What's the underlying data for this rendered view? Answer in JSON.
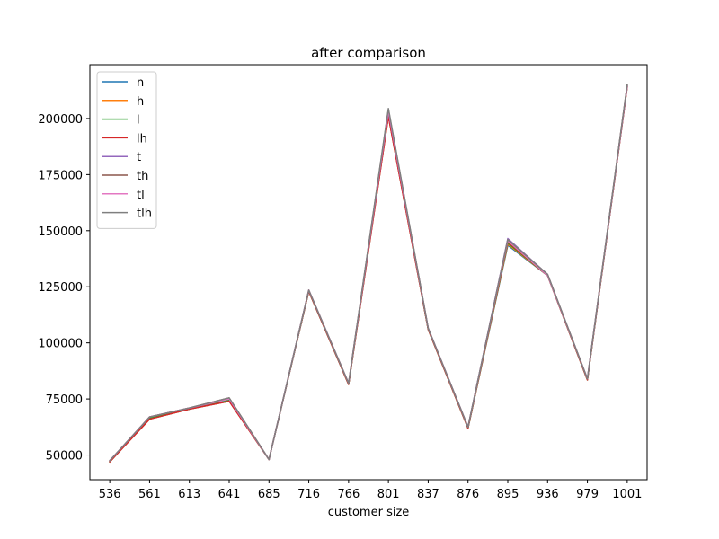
{
  "chart_data": {
    "type": "line",
    "title": "after comparison",
    "xlabel": "customer size",
    "ylabel": "",
    "categories": [
      "536",
      "561",
      "613",
      "641",
      "685",
      "716",
      "766",
      "801",
      "837",
      "876",
      "895",
      "936",
      "979",
      "1001"
    ],
    "ylim": [
      39000,
      224000
    ],
    "yticks": [
      50000,
      75000,
      100000,
      125000,
      150000,
      175000,
      200000
    ],
    "grid": false,
    "legend_position": "upper-left",
    "series": [
      {
        "name": "n",
        "color": "#1f77b4",
        "values": [
          47000,
          66000,
          70500,
          74000,
          48000,
          123000,
          81500,
          201000,
          106000,
          62000,
          143500,
          130000,
          83500,
          214000
        ]
      },
      {
        "name": "h",
        "color": "#ff7f0e",
        "values": [
          47000,
          66000,
          70500,
          74000,
          48000,
          123000,
          81500,
          201000,
          106000,
          62000,
          144000,
          130000,
          83500,
          214000
        ]
      },
      {
        "name": "l",
        "color": "#2ca02c",
        "values": [
          47000,
          66500,
          70500,
          74500,
          48000,
          123000,
          81500,
          202000,
          106000,
          62000,
          144500,
          130000,
          83500,
          214500
        ]
      },
      {
        "name": "lh",
        "color": "#d62728",
        "values": [
          47000,
          66000,
          70500,
          74000,
          48000,
          123000,
          81500,
          201000,
          106000,
          62000,
          145000,
          130000,
          83500,
          214000
        ]
      },
      {
        "name": "t",
        "color": "#9467bd",
        "values": [
          47500,
          67000,
          71000,
          75000,
          48000,
          123500,
          82000,
          203000,
          106500,
          62500,
          146500,
          130500,
          84000,
          214500
        ]
      },
      {
        "name": "th",
        "color": "#8c564b",
        "values": [
          47500,
          67000,
          71000,
          75500,
          48000,
          123500,
          82000,
          204000,
          106500,
          62500,
          146000,
          130500,
          84000,
          215000
        ]
      },
      {
        "name": "tl",
        "color": "#e377c2",
        "values": [
          47500,
          67000,
          71000,
          75000,
          48000,
          123500,
          82000,
          203500,
          106500,
          62500,
          145500,
          130000,
          84000,
          214500
        ]
      },
      {
        "name": "tlh",
        "color": "#7f7f7f",
        "values": [
          47500,
          67000,
          71000,
          75500,
          48000,
          123500,
          82000,
          204500,
          106500,
          62500,
          146000,
          130500,
          84000,
          215000
        ]
      }
    ]
  }
}
